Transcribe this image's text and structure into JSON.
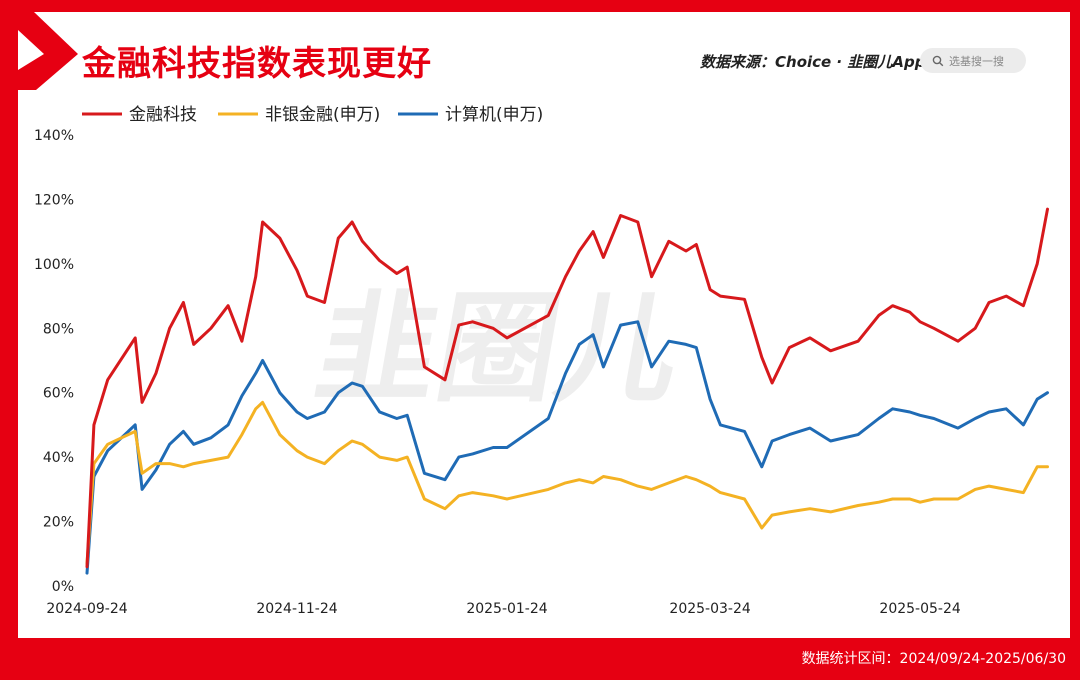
{
  "title": "金融科技指数表现更好",
  "source_label": "数据来源：Choice · 韭圈儿App",
  "search_placeholder": "选基搜一搜",
  "footer_note": "数据统计区间：2024/09/24-2025/06/30",
  "watermark": "韭圈儿",
  "colors": {
    "brand_red": "#e60012",
    "fintech": "#d7191c",
    "nonbank": "#f4b223",
    "computer": "#1f6bb5"
  },
  "chart_data": {
    "type": "line",
    "title": "金融科技指数表现更好",
    "ylim": [
      0,
      140
    ],
    "yticks": [
      "0%",
      "20%",
      "40%",
      "60%",
      "80%",
      "100%",
      "120%",
      "140%"
    ],
    "xticks": [
      "2024-09-24",
      "2024-11-24",
      "2025-01-24",
      "2025-03-24",
      "2025-05-24"
    ],
    "legend_position": "top-left",
    "grid": false,
    "x": [
      "2024-09-24",
      "2024-09-26",
      "2024-09-30",
      "2024-10-08",
      "2024-10-10",
      "2024-10-14",
      "2024-10-18",
      "2024-10-22",
      "2024-10-25",
      "2024-10-30",
      "2024-11-04",
      "2024-11-08",
      "2024-11-12",
      "2024-11-14",
      "2024-11-19",
      "2024-11-24",
      "2024-11-27",
      "2024-12-02",
      "2024-12-06",
      "2024-12-10",
      "2024-12-13",
      "2024-12-18",
      "2024-12-23",
      "2024-12-26",
      "2024-12-31",
      "2025-01-06",
      "2025-01-10",
      "2025-01-14",
      "2025-01-20",
      "2025-01-24",
      "2025-02-05",
      "2025-02-10",
      "2025-02-14",
      "2025-02-18",
      "2025-02-21",
      "2025-02-26",
      "2025-03-03",
      "2025-03-07",
      "2025-03-12",
      "2025-03-17",
      "2025-03-20",
      "2025-03-24",
      "2025-03-27",
      "2025-04-03",
      "2025-04-08",
      "2025-04-11",
      "2025-04-16",
      "2025-04-22",
      "2025-04-28",
      "2025-05-06",
      "2025-05-12",
      "2025-05-16",
      "2025-05-21",
      "2025-05-24",
      "2025-05-28",
      "2025-06-04",
      "2025-06-09",
      "2025-06-13",
      "2025-06-18",
      "2025-06-23",
      "2025-06-27",
      "2025-06-30"
    ],
    "series": [
      {
        "name": "金融科技",
        "color": "#d7191c",
        "values": [
          6,
          50,
          64,
          77,
          57,
          66,
          80,
          88,
          75,
          80,
          87,
          76,
          96,
          113,
          108,
          98,
          90,
          88,
          108,
          113,
          107,
          101,
          97,
          99,
          68,
          64,
          81,
          82,
          80,
          77,
          84,
          96,
          104,
          110,
          102,
          115,
          113,
          96,
          107,
          104,
          106,
          92,
          90,
          89,
          71,
          63,
          74,
          77,
          73,
          76,
          84,
          87,
          85,
          82,
          80,
          76,
          80,
          88,
          90,
          87,
          100,
          117
        ]
      },
      {
        "name": "非银金融(申万)",
        "color": "#f4b223",
        "values": [
          7,
          38,
          44,
          48,
          35,
          38,
          38,
          37,
          38,
          39,
          40,
          47,
          55,
          57,
          47,
          42,
          40,
          38,
          42,
          45,
          44,
          40,
          39,
          40,
          27,
          24,
          28,
          29,
          28,
          27,
          30,
          32,
          33,
          32,
          34,
          33,
          31,
          30,
          32,
          34,
          33,
          31,
          29,
          27,
          18,
          22,
          23,
          24,
          23,
          25,
          26,
          27,
          27,
          26,
          27,
          27,
          30,
          31,
          30,
          29,
          37,
          37
        ]
      },
      {
        "name": "计算机(申万)",
        "color": "#1f6bb5",
        "values": [
          4,
          34,
          42,
          50,
          30,
          36,
          44,
          48,
          44,
          46,
          50,
          59,
          66,
          70,
          60,
          54,
          52,
          54,
          60,
          63,
          62,
          54,
          52,
          53,
          35,
          33,
          40,
          41,
          43,
          43,
          52,
          66,
          75,
          78,
          68,
          81,
          82,
          68,
          76,
          75,
          74,
          58,
          50,
          48,
          37,
          45,
          47,
          49,
          45,
          47,
          52,
          55,
          54,
          53,
          52,
          49,
          52,
          54,
          55,
          50,
          58,
          60
        ]
      }
    ]
  }
}
